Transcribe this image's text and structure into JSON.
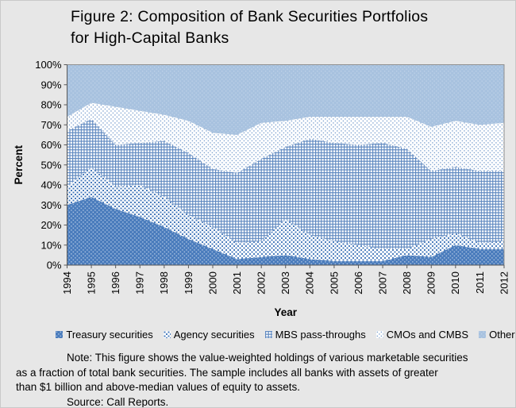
{
  "figure": {
    "title_line1": "Figure 2:  Composition of Bank Securities Portfolios",
    "title_line2": "for High-Capital Banks"
  },
  "chart_data": {
    "type": "area",
    "stacked": true,
    "units": "percent of total bank securities",
    "title": "Figure 2: Composition of Bank Securities Portfolios for High-Capital Banks",
    "xlabel": "Year",
    "ylabel": "Percent",
    "ylim": [
      0,
      100
    ],
    "grid": false,
    "legend_position": "bottom",
    "yticks": [
      "0%",
      "10%",
      "20%",
      "30%",
      "40%",
      "50%",
      "60%",
      "70%",
      "80%",
      "90%",
      "100%"
    ],
    "categories": [
      "1994",
      "1995",
      "1996",
      "1997",
      "1998",
      "1999",
      "2000",
      "2001",
      "2002",
      "2003",
      "2004",
      "2005",
      "2006",
      "2007",
      "2008",
      "2009",
      "2010",
      "2011",
      "2012"
    ],
    "series": [
      {
        "name": "Treasury securities",
        "pattern": "treasury",
        "fill_color": "#4a7cbc",
        "dot_color": "#a5bedf",
        "values": [
          30,
          34,
          28,
          24,
          19,
          13,
          8,
          3,
          4,
          5,
          3,
          2,
          2,
          2,
          5,
          4,
          10,
          8,
          8
        ]
      },
      {
        "name": "Agency securities",
        "pattern": "agency",
        "fill_color": "#ffffff",
        "dot_color": "#4a7cbc",
        "values": [
          9,
          15,
          11,
          16,
          15,
          12,
          11,
          8,
          8,
          18,
          12,
          10,
          8,
          6,
          3,
          9,
          6,
          3,
          4
        ]
      },
      {
        "name": "MBS pass-throughs",
        "pattern": "mbs",
        "fill_color": "#ffffff",
        "grid_color": "#5d87bf",
        "values": [
          28,
          24,
          21,
          21,
          28,
          31,
          29,
          35,
          41,
          36,
          48,
          49,
          50,
          53,
          50,
          34,
          33,
          36,
          35
        ]
      },
      {
        "name": "CMOs and CMBS",
        "pattern": "cmo",
        "fill_color": "#ffffff",
        "dot_color": "#7ea2d0",
        "values": [
          7,
          8,
          19,
          16,
          13,
          16,
          18,
          19,
          18,
          13,
          11,
          13,
          14,
          13,
          16,
          22,
          23,
          23,
          24
        ]
      },
      {
        "name": "Other",
        "pattern": "other",
        "fill_color": "#a8c2df",
        "dot_color": "#c0d3e9",
        "values": [
          26,
          19,
          21,
          23,
          25,
          28,
          34,
          35,
          29,
          28,
          26,
          26,
          26,
          26,
          26,
          31,
          28,
          30,
          29
        ]
      }
    ]
  },
  "legend": {
    "items": [
      {
        "label": "Treasury securities",
        "fill_url": "url(#pat-treasury)"
      },
      {
        "label": "Agency securities",
        "fill_url": "url(#pat-agency)"
      },
      {
        "label": "MBS pass-throughs",
        "fill_url": "url(#pat-mbs)"
      },
      {
        "label": "CMOs and CMBS",
        "fill_url": "url(#pat-cmo)"
      },
      {
        "label": "Other",
        "fill_url": "url(#pat-other)"
      }
    ]
  },
  "notes": {
    "lines": [
      "Note:  This figure shows the value-weighted holdings of various marketable securities",
      "as a fraction of total bank securities.  The sample includes all banks with assets of greater",
      "than $1 billion and above-median values of equity to assets.",
      "Source:  Call Reports."
    ]
  },
  "colors": {
    "background": "#e7e7e7",
    "axis": "#595959",
    "plot_border": "#8f8f8f",
    "treasury_blue": "#4a7cbc",
    "other_light_blue": "#a8c2df",
    "pattern_blue": "#5d87bf"
  }
}
